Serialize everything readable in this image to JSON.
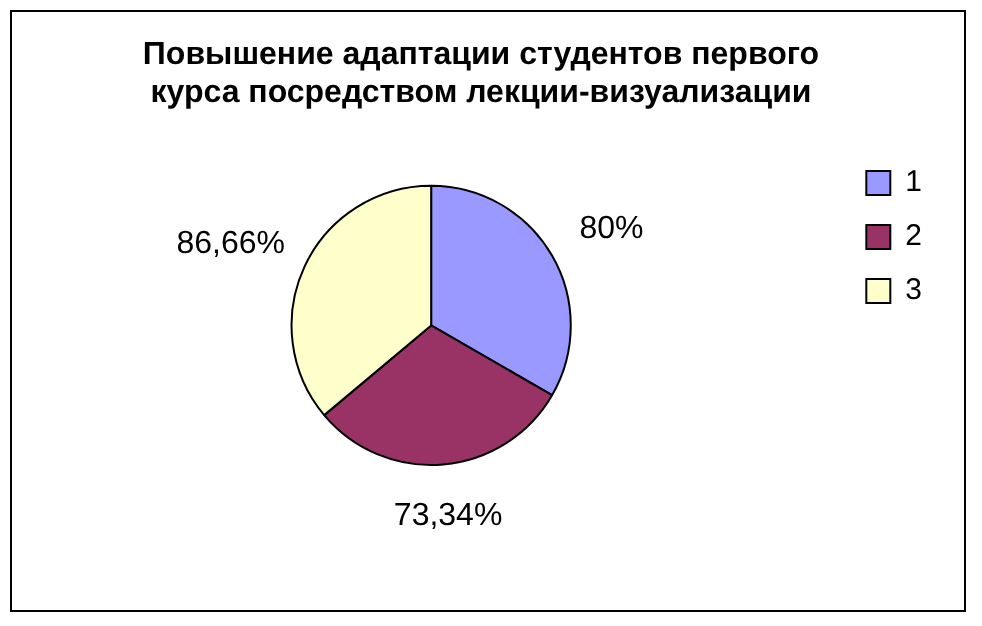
{
  "chart_data": {
    "type": "pie",
    "title": "Повышение адаптации студентов первого курса посредством лекции-визуализации",
    "categories": [
      "1",
      "2",
      "3"
    ],
    "values": [
      80,
      73.34,
      86.66
    ],
    "colors": [
      "#9999ff",
      "#993366",
      "#ffffcc"
    ],
    "value_labels": [
      "80%",
      "73,34%",
      "86,66%"
    ],
    "legend": "right"
  }
}
